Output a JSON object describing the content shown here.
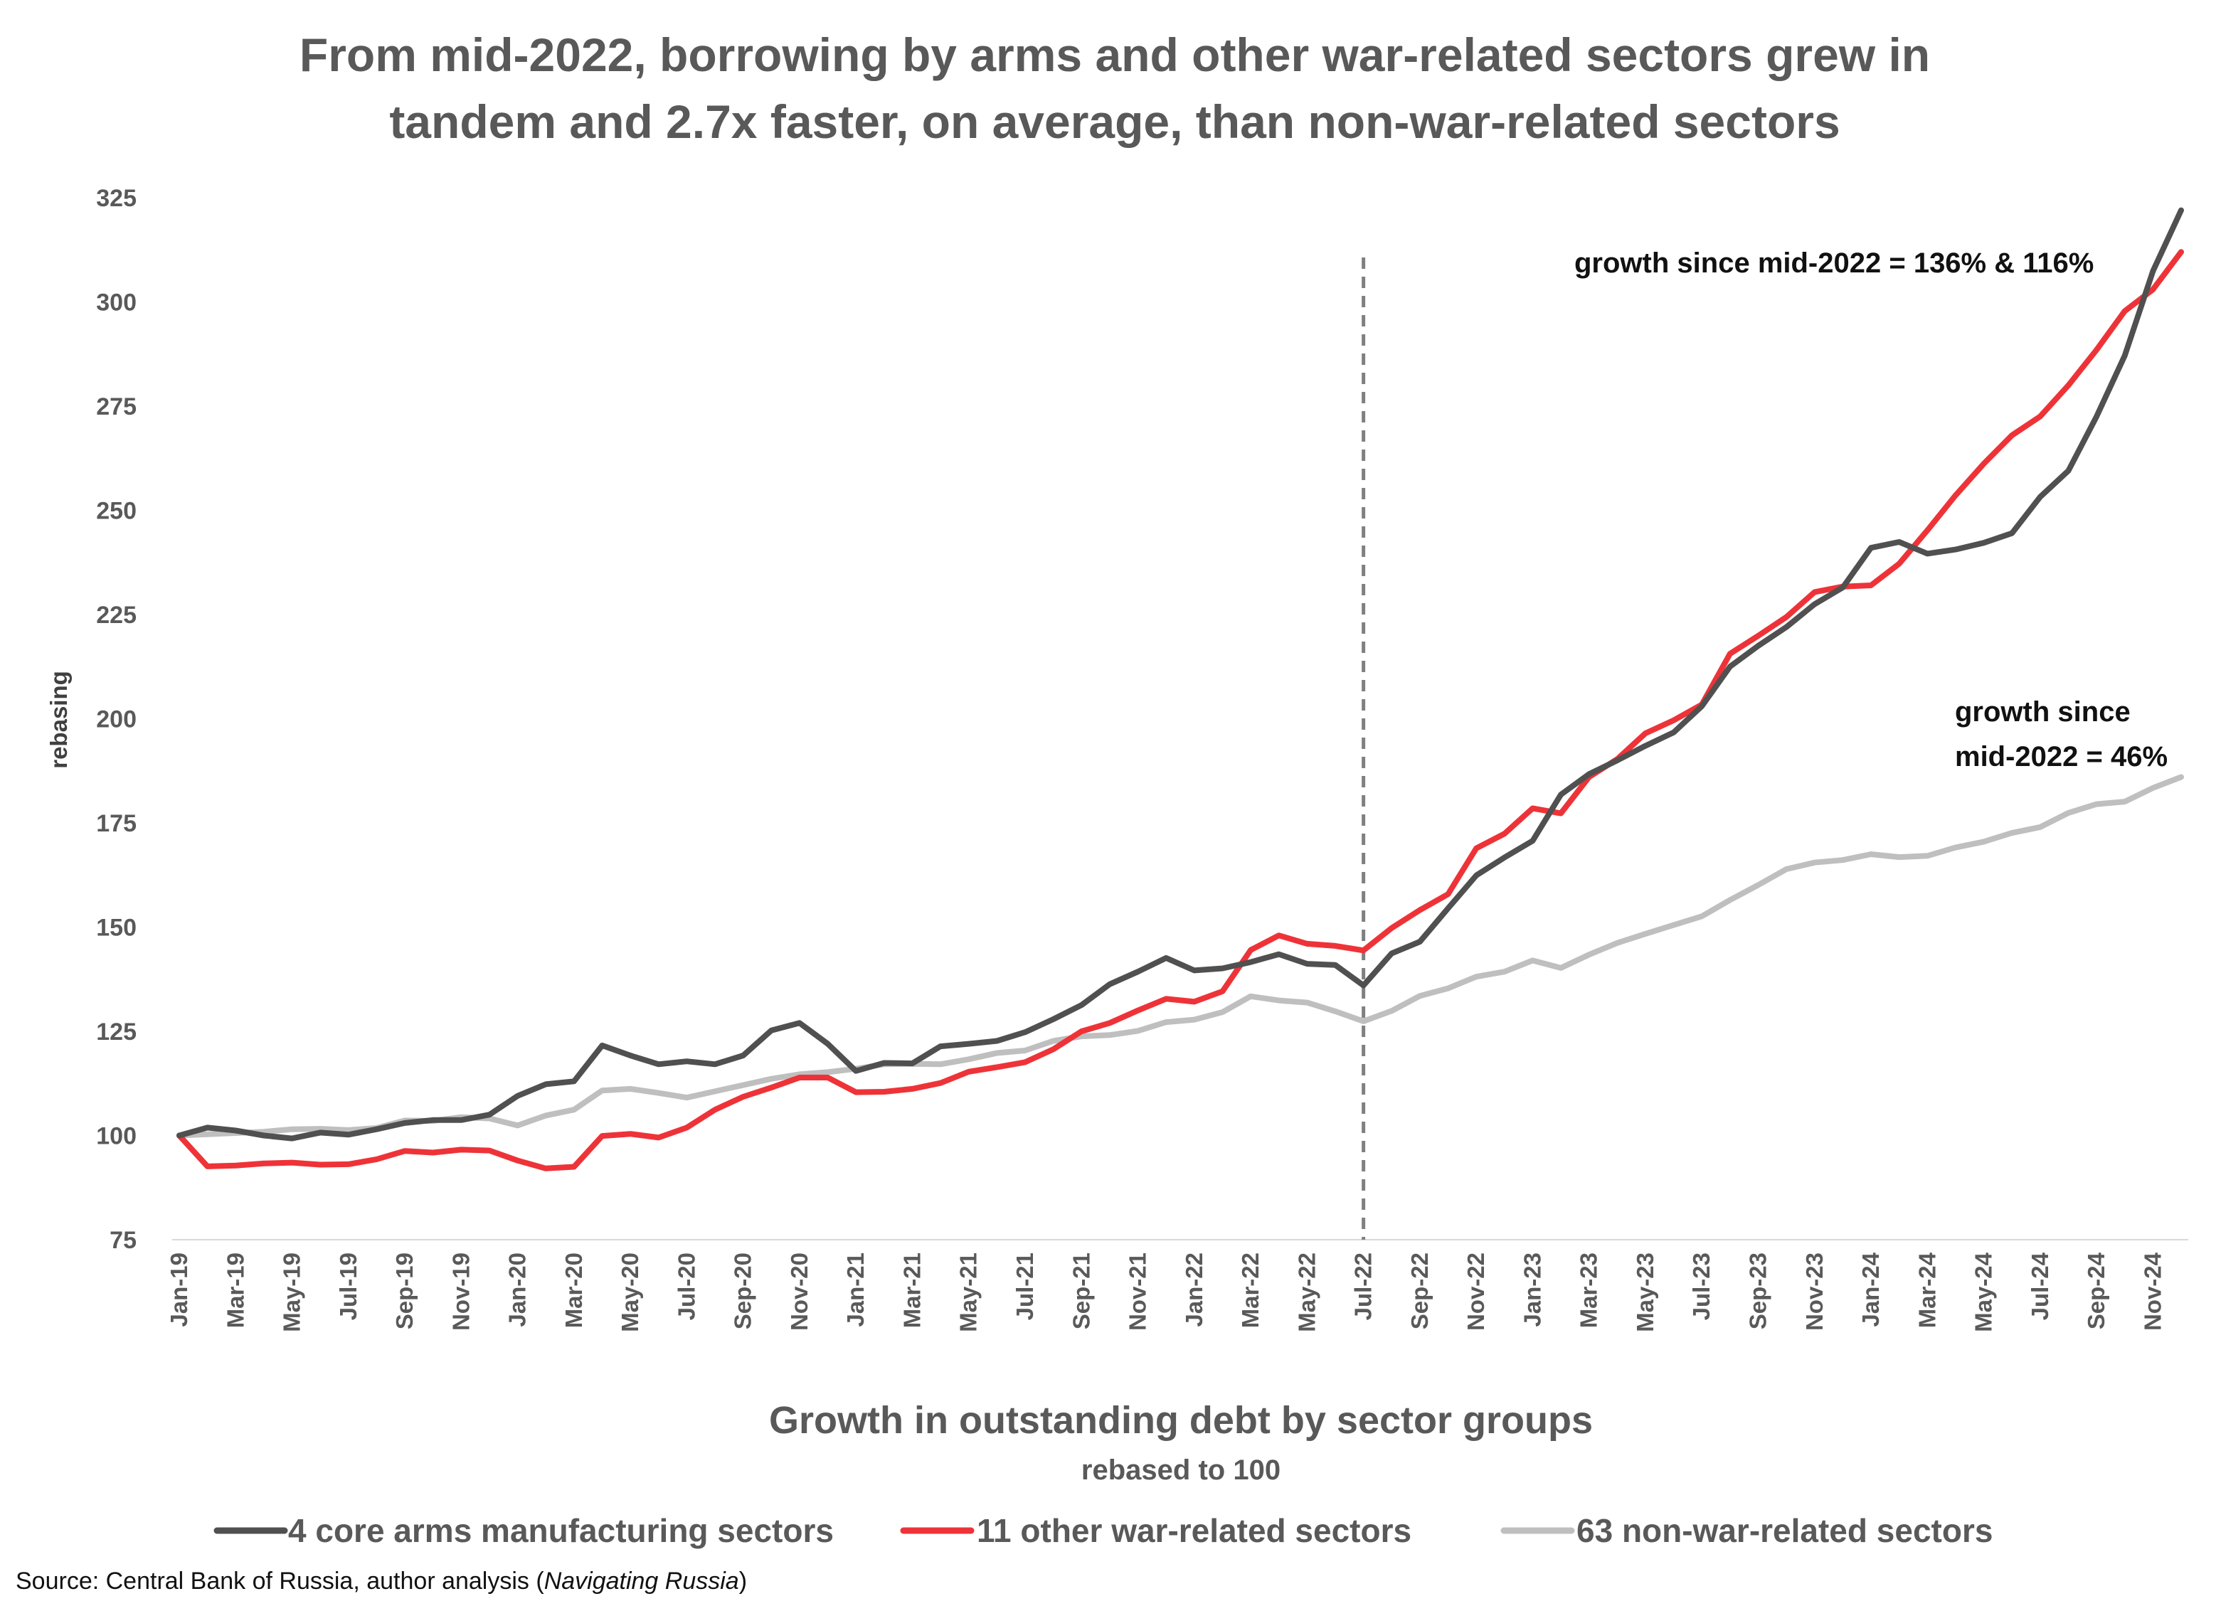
{
  "chart_data": {
    "type": "line",
    "title_lines": [
      "From mid-2022, borrowing by arms and other war-related sectors grew in",
      "tandem and 2.7x faster, on average, than non-war-related sectors"
    ],
    "xlabel": "Growth in outstanding debt by sector groups",
    "xlabel_sub": "rebased to 100",
    "ylabel": "rebasing",
    "ylim": [
      75,
      325
    ],
    "yticks": [
      75,
      100,
      125,
      150,
      175,
      200,
      225,
      250,
      275,
      300,
      325
    ],
    "x_tick_labels": [
      "Jan-19",
      "Mar-19",
      "May-19",
      "Jul-19",
      "Sep-19",
      "Nov-19",
      "Jan-20",
      "Mar-20",
      "May-20",
      "Jul-20",
      "Sep-20",
      "Nov-20",
      "Jan-21",
      "Mar-21",
      "May-21",
      "Jul-21",
      "Sep-21",
      "Nov-21",
      "Jan-22",
      "Mar-22",
      "May-22",
      "Jul-22",
      "Sep-22",
      "Nov-22",
      "Jan-23",
      "Mar-23",
      "May-23",
      "Jul-23",
      "Sep-23",
      "Nov-23",
      "Jan-24",
      "Mar-24",
      "May-24",
      "Jul-24",
      "Sep-24",
      "Nov-24"
    ],
    "n_points": 72,
    "reference_line": {
      "at_index": 42,
      "label": "Jul-22",
      "style": "dashed"
    },
    "series": [
      {
        "name": "4 core arms manufacturing sectors",
        "color": "#505050",
        "values": [
          100,
          101.9,
          101.2,
          100,
          99.3,
          100.7,
          100.2,
          101.5,
          103,
          103.7,
          103.7,
          105,
          109.5,
          112.3,
          113,
          121.6,
          119.2,
          117.1,
          117.8,
          117.1,
          119.2,
          125.2,
          127,
          122,
          115.5,
          117.4,
          117.3,
          121.4,
          122,
          122.7,
          124.8,
          127.9,
          131.3,
          136.3,
          139.3,
          142.6,
          139.6,
          140.1,
          141.6,
          143.5,
          141.2,
          140.9,
          136,
          143.7,
          146.5,
          154.5,
          162.4,
          166.7,
          170.7,
          181.8,
          186.7,
          190,
          193.5,
          196.7,
          203,
          212.5,
          217.5,
          222,
          227.5,
          231.5,
          241,
          242.4,
          239.6,
          240.6,
          242.2,
          244.5,
          253.2,
          259.5,
          272.5,
          287.1,
          307.4,
          322
        ]
      },
      {
        "name": "11 other war-related sectors",
        "color": "#ee3338",
        "values": [
          100,
          92.6,
          92.8,
          93.3,
          93.5,
          93,
          93.1,
          94.3,
          96.3,
          95.9,
          96.6,
          96.4,
          94,
          92.1,
          92.5,
          99.9,
          100.4,
          99.5,
          101.9,
          106.2,
          109.3,
          111.5,
          113.9,
          113.9,
          110.4,
          110.5,
          111.2,
          112.6,
          115.3,
          116.4,
          117.6,
          120.7,
          125,
          127,
          130,
          132.8,
          132.1,
          134.6,
          144.5,
          148,
          146,
          145.5,
          144.4,
          149.8,
          154.1,
          157.9,
          168.9,
          172.4,
          178.5,
          177.3,
          186,
          190.3,
          196.5,
          199.6,
          203.4,
          215.6,
          219.9,
          224.4,
          230.4,
          231.7,
          232,
          237.2,
          245.2,
          253.6,
          261.2,
          268,
          272.5,
          280,
          288.5,
          297.8,
          303,
          312
        ]
      },
      {
        "name": "63 non-war-related sectors",
        "color": "#bfbfbf",
        "values": [
          100,
          100.3,
          100.6,
          100.9,
          101.5,
          101.6,
          101.3,
          101.8,
          103.6,
          103.5,
          104.4,
          104.1,
          102.4,
          104.8,
          106.2,
          110.8,
          111.2,
          110.2,
          109.1,
          110.6,
          112.1,
          113.6,
          114.7,
          115.2,
          116,
          117.1,
          117.2,
          117.1,
          118.3,
          119.8,
          120.4,
          122.7,
          123.8,
          124.1,
          125.1,
          127.2,
          127.8,
          129.6,
          133.4,
          132.4,
          131.9,
          129.8,
          127.4,
          129.9,
          133.5,
          135.3,
          138.1,
          139.3,
          142,
          140.2,
          143.4,
          146.2,
          148.4,
          150.5,
          152.6,
          156.5,
          160.1,
          163.9,
          165.5,
          166.1,
          167.5,
          166.8,
          167.1,
          169.1,
          170.5,
          172.6,
          174,
          177.4,
          179.5,
          180.1,
          183.4,
          186
        ]
      }
    ],
    "annotations": [
      {
        "text": "growth since mid-2022 = 136% & 116%"
      },
      {
        "text_lines": [
          "growth since",
          "mid-2022 = 46%"
        ]
      }
    ],
    "source_prefix": "Source: Central Bank of Russia, author analysis (",
    "source_italic": "Navigating Russia",
    "source_suffix": ")",
    "legend_position": "bottom"
  }
}
